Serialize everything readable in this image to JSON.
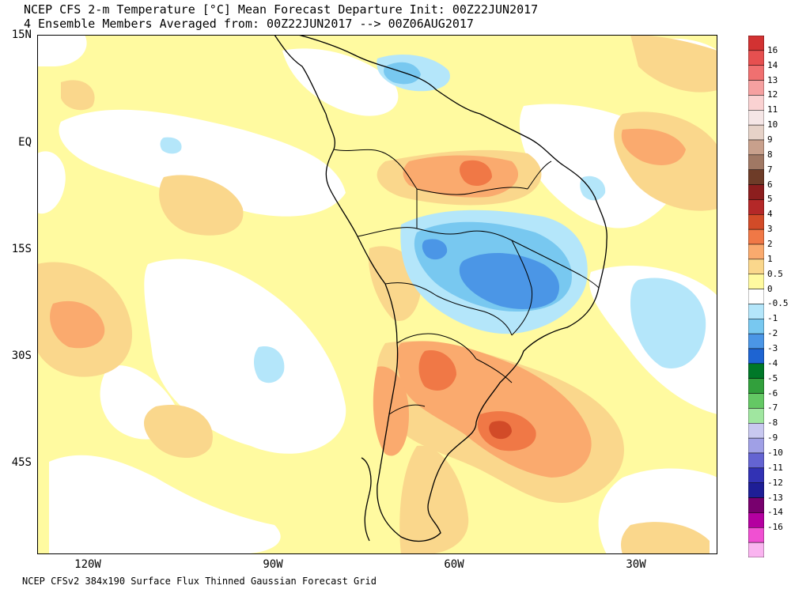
{
  "title": {
    "line1": "NCEP CFS 2-m Temperature [°C] Mean Forecast Departure Init: 00Z22JUN2017",
    "line2": "4 Ensemble Members Averaged from: 00Z22JUN2017 --> 00Z06AUG2017"
  },
  "footer": "NCEP CFSv2 384x190 Surface Flux Thinned Gaussian Forecast Grid",
  "axes": {
    "lat_labels": [
      "15N",
      "EQ",
      "15S",
      "30S",
      "45S"
    ],
    "lon_labels": [
      "120W",
      "90W",
      "60W",
      "30W"
    ]
  },
  "colorbar": {
    "labels": [
      "16",
      "14",
      "13",
      "12",
      "11",
      "10",
      "9",
      "8",
      "7",
      "6",
      "5",
      "4",
      "3",
      "2",
      "1",
      "0.5",
      "0",
      "-0.5",
      "-1",
      "-2",
      "-3",
      "-4",
      "-5",
      "-6",
      "-7",
      "-8",
      "-9",
      "-10",
      "-11",
      "-12",
      "-13",
      "-14",
      "-16"
    ],
    "colors": [
      "#d23232",
      "#e65050",
      "#f07070",
      "#f5a0a0",
      "#fad2d2",
      "#f5e6e6",
      "#e6d2c8",
      "#c8a08c",
      "#a07864",
      "#6e3c28",
      "#8c1e1e",
      "#b42828",
      "#d24b28",
      "#f07846",
      "#faaa6e",
      "#fad78c",
      "#fffaa0",
      "#ffffff",
      "#b4e6fa",
      "#78c8f0",
      "#4b96e6",
      "#1e64d2",
      "#007828",
      "#32a03c",
      "#64c864",
      "#a0e6a0",
      "#c8c8f0",
      "#a0a0e6",
      "#6464d2",
      "#3232b4",
      "#1e1e96",
      "#78006e",
      "#b400a0",
      "#f050d2",
      "#fab4f0"
    ]
  },
  "map": {
    "palette": {
      "ocean_neutral": "#fffaa0",
      "white": "#ffffff",
      "light_orange": "#fad78c",
      "orange": "#faaa6e",
      "dark_orange": "#f07846",
      "red": "#d24b28",
      "light_blue": "#b4e6fa",
      "blue": "#78c8f0",
      "deep_blue": "#4b96e6"
    }
  }
}
